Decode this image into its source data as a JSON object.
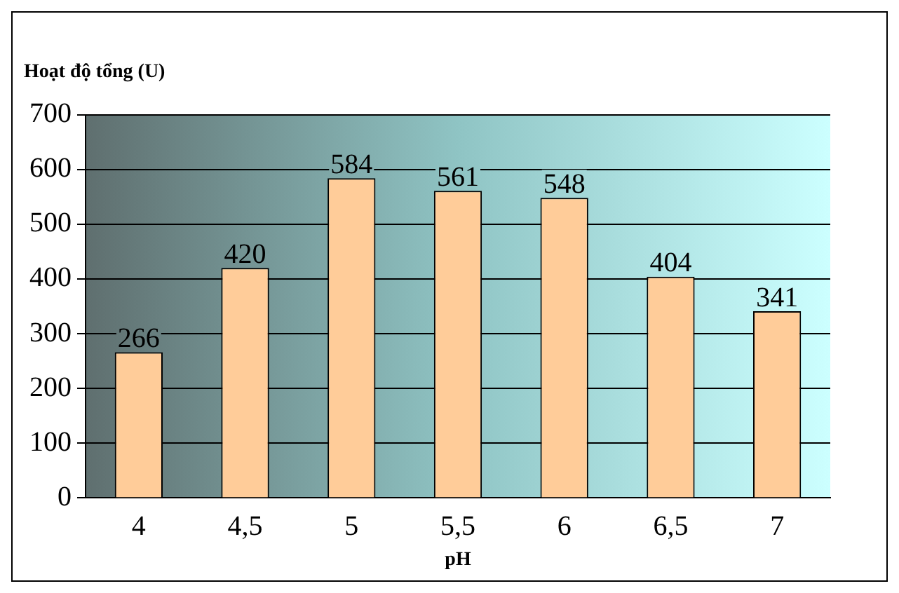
{
  "chart_data": {
    "type": "bar",
    "ylabel": "Hoạt độ tổng (U)",
    "xlabel": "pH",
    "categories": [
      "4",
      "4,5",
      "5",
      "5,5",
      "6",
      "6,5",
      "7"
    ],
    "values": [
      266,
      420,
      584,
      561,
      548,
      404,
      341
    ],
    "color": "#ffcc99",
    "ylim": [
      0,
      700
    ],
    "yticks": [
      0,
      100,
      200,
      300,
      400,
      500,
      600,
      700
    ],
    "grid": "y",
    "legend": false,
    "data_labels": true
  }
}
